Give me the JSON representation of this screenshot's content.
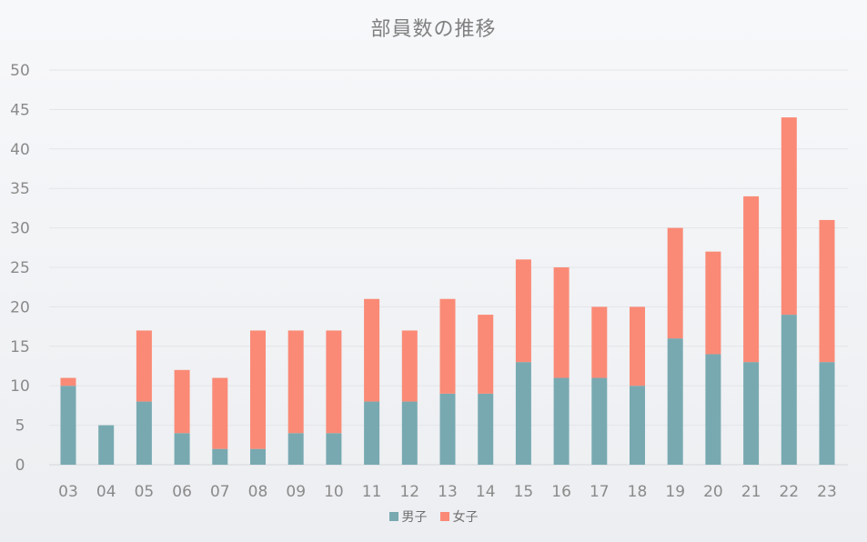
{
  "chart_data": {
    "type": "bar",
    "stacked": true,
    "title": "部員数の推移",
    "categories": [
      "03",
      "04",
      "05",
      "06",
      "07",
      "08",
      "09",
      "10",
      "11",
      "12",
      "13",
      "14",
      "15",
      "16",
      "17",
      "18",
      "19",
      "20",
      "21",
      "22",
      "23"
    ],
    "series": [
      {
        "name": "男子",
        "color": "#78a9b1",
        "values": [
          10,
          5,
          8,
          4,
          2,
          2,
          4,
          4,
          8,
          8,
          9,
          9,
          13,
          11,
          11,
          10,
          16,
          14,
          13,
          19,
          13
        ]
      },
      {
        "name": "女子",
        "color": "#fa8a76",
        "values": [
          1,
          0,
          9,
          8,
          9,
          15,
          13,
          13,
          13,
          9,
          12,
          10,
          13,
          14,
          9,
          10,
          14,
          13,
          21,
          25,
          18
        ]
      }
    ],
    "yticks": [
      0,
      5,
      10,
      15,
      20,
      25,
      30,
      35,
      40,
      45,
      50
    ],
    "ylim": [
      0,
      50
    ],
    "grid": true,
    "legend_position": "bottom"
  }
}
